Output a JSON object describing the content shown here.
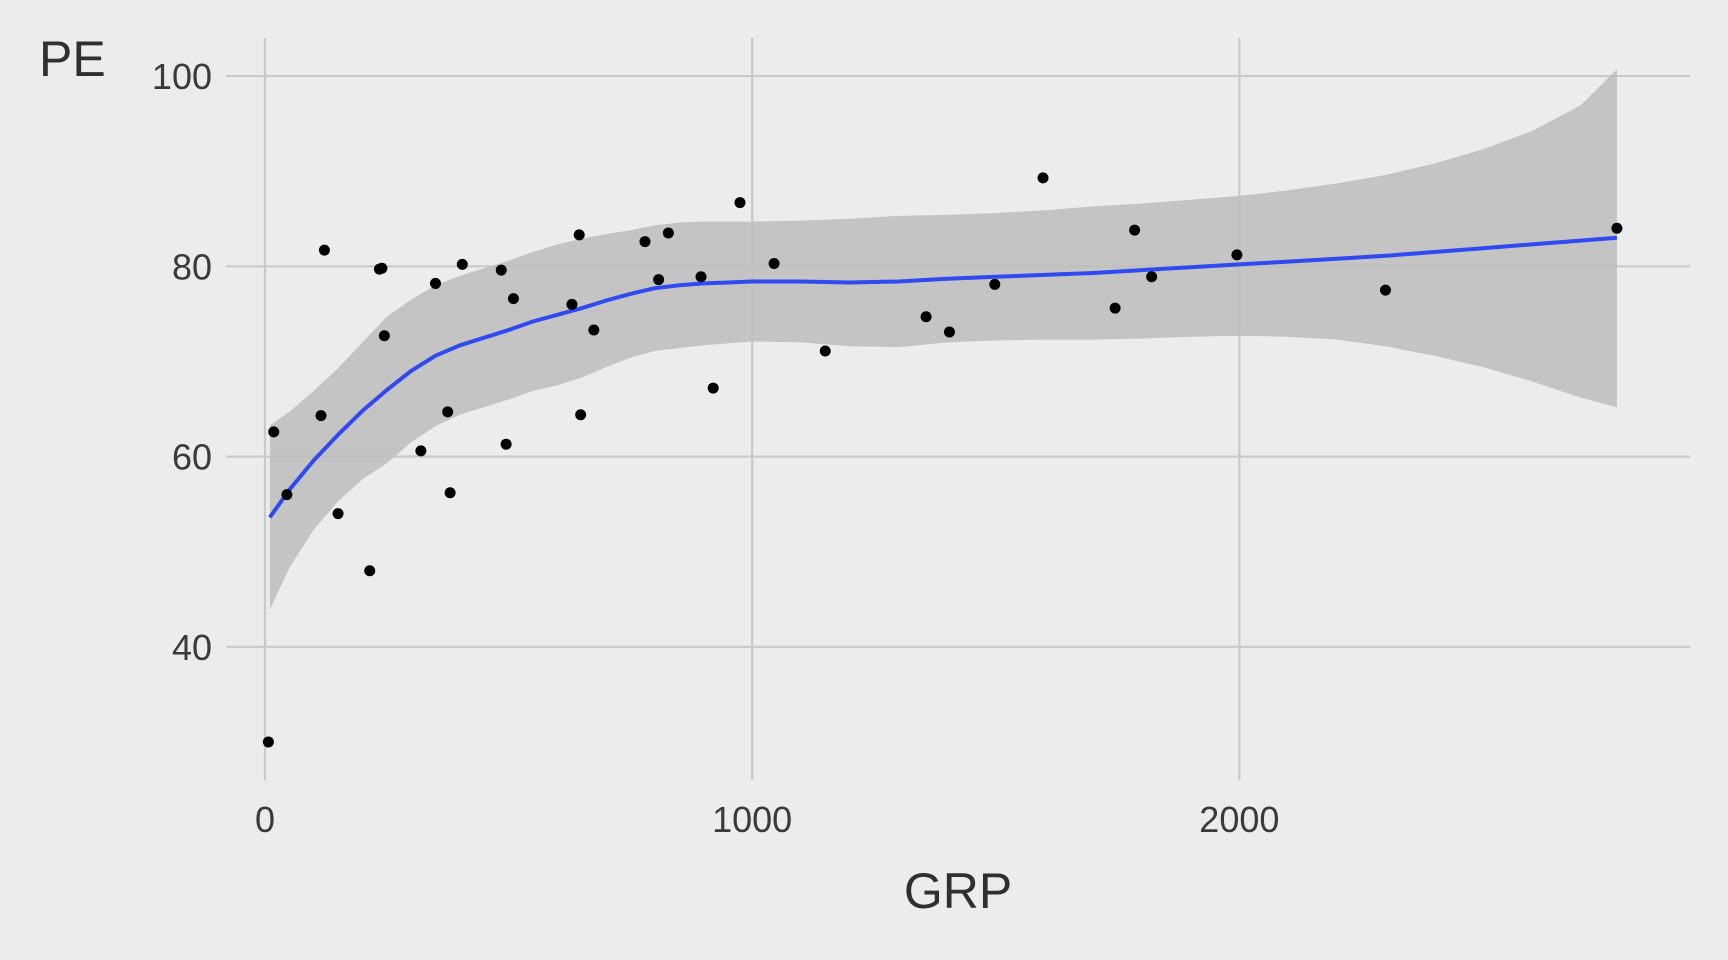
{
  "chart_data": {
    "type": "scatter",
    "xlabel": "GRP",
    "ylabel": "PE",
    "xlim": [
      -80,
      2925
    ],
    "ylim": [
      26,
      104
    ],
    "xticks": [
      0,
      1000,
      2000
    ],
    "yticks": [
      40,
      60,
      80,
      100
    ],
    "grid": true,
    "legend": "none",
    "colors": {
      "background": "#ececec",
      "grid": "#c9c9c9",
      "point": "#000000",
      "smooth_line": "#3049f0",
      "ribbon": "#bdbdbd"
    },
    "points": {
      "x": [
        7,
        18,
        45,
        115,
        122,
        150,
        215,
        235,
        240,
        245,
        320,
        350,
        375,
        380,
        405,
        485,
        495,
        510,
        630,
        645,
        648,
        675,
        780,
        808,
        828,
        895,
        920,
        975,
        1045,
        1150,
        1357,
        1405,
        1498,
        1597,
        1745,
        1785,
        1820,
        1995,
        2300,
        2775
      ],
      "y": [
        30.0,
        62.6,
        56.0,
        64.3,
        81.7,
        54.0,
        48.0,
        79.7,
        79.8,
        72.7,
        60.6,
        78.2,
        64.7,
        56.2,
        80.2,
        79.6,
        61.3,
        76.6,
        76.0,
        83.3,
        64.4,
        73.3,
        82.6,
        78.6,
        83.5,
        78.9,
        67.2,
        86.7,
        80.3,
        71.1,
        74.7,
        73.1,
        78.1,
        89.3,
        75.6,
        83.8,
        78.9,
        81.2,
        77.5,
        84.0
      ]
    },
    "smooth": {
      "x": [
        10,
        50,
        100,
        150,
        200,
        250,
        300,
        350,
        400,
        450,
        500,
        550,
        600,
        650,
        700,
        750,
        800,
        850,
        900,
        950,
        1000,
        1100,
        1200,
        1300,
        1400,
        1500,
        1600,
        1700,
        1800,
        1900,
        2000,
        2100,
        2200,
        2300,
        2400,
        2500,
        2600,
        2700,
        2775
      ],
      "y": [
        53.6,
        56.5,
        59.6,
        62.3,
        64.8,
        67.0,
        69.0,
        70.6,
        71.7,
        72.5,
        73.3,
        74.2,
        74.9,
        75.6,
        76.4,
        77.1,
        77.7,
        78.0,
        78.2,
        78.3,
        78.4,
        78.4,
        78.3,
        78.4,
        78.7,
        78.9,
        79.1,
        79.3,
        79.6,
        79.9,
        80.2,
        80.5,
        80.8,
        81.1,
        81.5,
        81.9,
        82.3,
        82.7,
        83.0
      ]
    },
    "ribbon": {
      "x": [
        10,
        50,
        100,
        150,
        200,
        250,
        300,
        350,
        400,
        450,
        500,
        550,
        600,
        650,
        700,
        750,
        800,
        850,
        900,
        950,
        1000,
        1100,
        1200,
        1300,
        1400,
        1500,
        1600,
        1700,
        1800,
        1900,
        2000,
        2100,
        2200,
        2300,
        2400,
        2500,
        2600,
        2700,
        2775
      ],
      "upper": [
        63.3,
        64.7,
        66.9,
        69.3,
        72.0,
        74.7,
        76.5,
        78.0,
        79.0,
        79.8,
        80.6,
        81.5,
        82.3,
        82.9,
        83.4,
        83.8,
        84.3,
        84.6,
        84.7,
        84.7,
        84.7,
        84.8,
        85.0,
        85.3,
        85.4,
        85.6,
        85.9,
        86.3,
        86.6,
        87.0,
        87.4,
        88.0,
        88.7,
        89.6,
        90.8,
        92.3,
        94.2,
        96.9,
        100.7
      ],
      "lower": [
        43.9,
        48.3,
        52.3,
        55.3,
        57.6,
        59.3,
        61.5,
        63.2,
        64.4,
        65.2,
        66.0,
        66.9,
        67.5,
        68.3,
        69.4,
        70.4,
        71.1,
        71.4,
        71.7,
        71.9,
        72.1,
        72.0,
        71.6,
        71.5,
        72.0,
        72.2,
        72.3,
        72.3,
        72.4,
        72.6,
        72.7,
        72.6,
        72.3,
        71.6,
        70.6,
        69.4,
        67.9,
        66.2,
        65.2
      ]
    }
  }
}
